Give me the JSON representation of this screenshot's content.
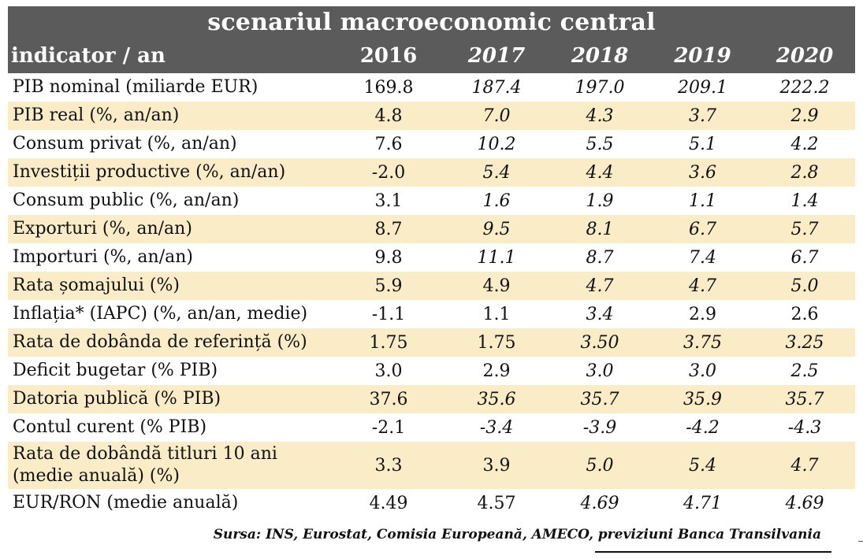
{
  "table": {
    "title": "scenariul macroeconomic central",
    "header": {
      "label": "indicator / an",
      "years": [
        "2016",
        "2017",
        "2018",
        "2019",
        "2020"
      ]
    },
    "rows": [
      {
        "label": "PIB nominal (miliarde EUR)",
        "values": [
          "169.8",
          "187.4",
          "197.0",
          "209.1",
          "222.2"
        ]
      },
      {
        "label": "PIB real (%, an/an)",
        "values": [
          "4.8",
          "7.0",
          "4.3",
          "3.7",
          "2.9"
        ]
      },
      {
        "label": "Consum privat (%, an/an)",
        "values": [
          "7.6",
          "10.2",
          "5.5",
          "5.1",
          "4.2"
        ]
      },
      {
        "label": "Investiții productive (%, an/an)",
        "values": [
          "-2.0",
          "5.4",
          "4.4",
          "3.6",
          "2.8"
        ]
      },
      {
        "label": "Consum public (%, an/an)",
        "values": [
          "3.1",
          "1.6",
          "1.9",
          "1.1",
          "1.4"
        ]
      },
      {
        "label": "Exporturi (%, an/an)",
        "values": [
          "8.7",
          "9.5",
          "8.1",
          "6.7",
          "5.7"
        ]
      },
      {
        "label": "Importuri (%, an/an)",
        "values": [
          "9.8",
          "11.1",
          "8.7",
          "7.4",
          "6.7"
        ]
      },
      {
        "label": "Rata șomajului (%)",
        "values": [
          "5.9",
          "4.9",
          "4.7",
          "4.7",
          "5.0"
        ]
      },
      {
        "label": "Inflația* (IAPC) (%, an/an, medie)",
        "values": [
          "-1.1",
          "1.1",
          "3.4",
          "2.9",
          "2.6"
        ]
      },
      {
        "label": "Rata de dobânda de referință (%)",
        "values": [
          "1.75",
          "1.75",
          "3.50",
          "3.75",
          "3.25"
        ]
      },
      {
        "label": "Deficit bugetar (% PIB)",
        "values": [
          "3.0",
          "2.9",
          "3.0",
          "3.0",
          "2.5"
        ]
      },
      {
        "label": "Datoria publică (% PIB)",
        "values": [
          "37.6",
          "35.6",
          "35.7",
          "35.9",
          "35.7"
        ]
      },
      {
        "label": "Contul curent (% PIB)",
        "values": [
          "-2.1",
          "-3.4",
          "-3.9",
          "-4.2",
          "-4.3"
        ]
      },
      {
        "label": "Rata de dobândă titluri 10 ani (medie anuală) (%)",
        "label_lines": [
          "Rata de dobândă titluri 10 ani",
          "(medie anuală) (%)"
        ],
        "values": [
          "3.3",
          "3.9",
          "5.0",
          "5.4",
          "4.7"
        ]
      },
      {
        "label": "EUR/RON (medie anuală)",
        "values": [
          "4.49",
          "4.57",
          "4.69",
          "4.71",
          "4.69"
        ]
      }
    ]
  },
  "source": "Sursa: INS, Eurostat, Comisia Europeană, AMECO, previziuni Banca Transilvania"
}
